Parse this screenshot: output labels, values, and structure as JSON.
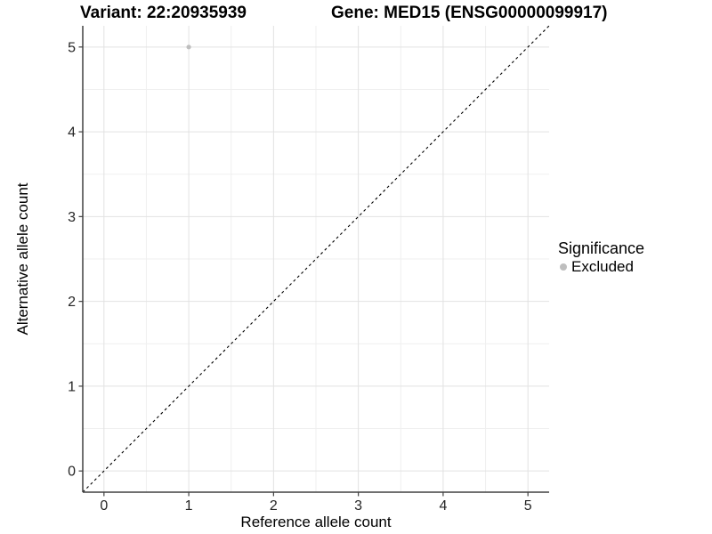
{
  "page": {
    "title_left": "Variant: 22:20935939",
    "title_right": "Gene: MED15 (ENSG00000099917)"
  },
  "chart_data": {
    "type": "scatter",
    "title_left": "Variant: 22:20935939",
    "title_right": "Gene: MED15 (ENSG00000099917)",
    "xlabel": "Reference allele count",
    "ylabel": "Alternative allele count",
    "xlim": [
      -0.25,
      5.25
    ],
    "ylim": [
      -0.25,
      5.25
    ],
    "x_ticks": [
      0,
      1,
      2,
      3,
      4,
      5
    ],
    "y_ticks": [
      0,
      1,
      2,
      3,
      4,
      5
    ],
    "x_minor_ticks": [
      0.5,
      1.5,
      2.5,
      3.5,
      4.5
    ],
    "y_minor_ticks": [
      0.5,
      1.5,
      2.5,
      3.5,
      4.5
    ],
    "grid": "major+minor",
    "identity_line": {
      "style": "dashed",
      "from": -0.25,
      "to": 5.25,
      "color": "#000000"
    },
    "series": [
      {
        "name": "Excluded",
        "color": "#bebebe",
        "points": [
          {
            "x": 1,
            "y": 5
          }
        ]
      }
    ],
    "legend": {
      "title": "Significance",
      "position": "right",
      "entries": [
        {
          "label": "Excluded",
          "color": "#bebebe"
        }
      ]
    }
  },
  "colors": {
    "background": "#ffffff",
    "grid_major": "#e2e2e2",
    "grid_minor": "#efefef",
    "axis_line": "#404040",
    "tick_mark": "#404040",
    "tick_label": "#262626",
    "point": "#bebebe",
    "identity_line": "#000000"
  }
}
